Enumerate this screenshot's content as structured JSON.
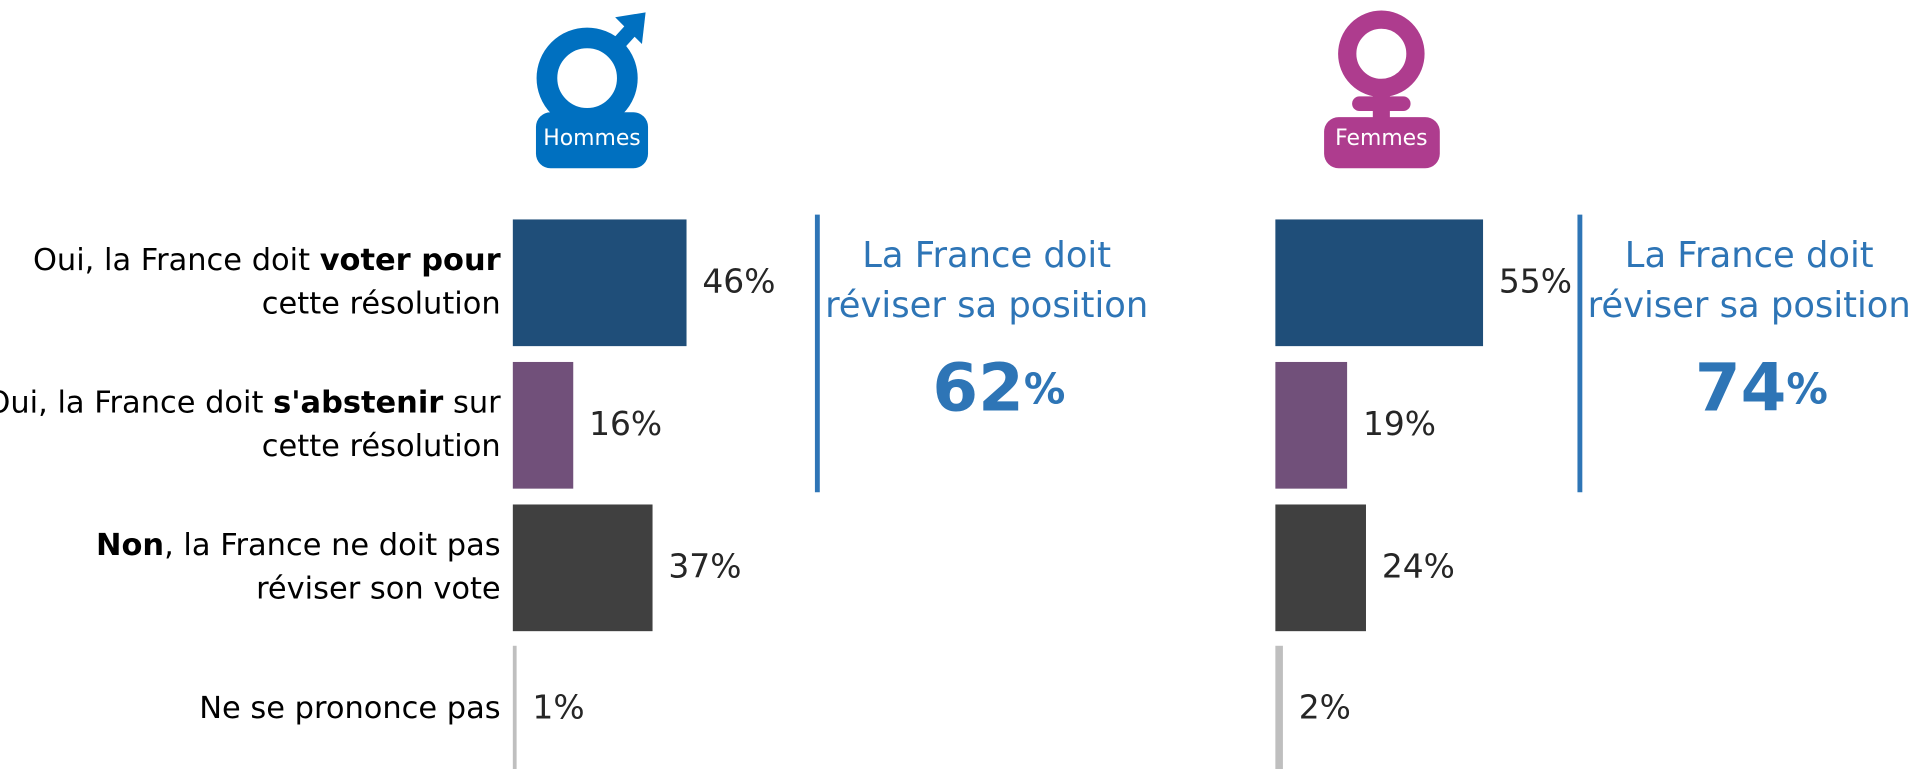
{
  "chart_data": [
    {
      "type": "bar",
      "orientation": "horizontal",
      "title": "Hommes",
      "icon": "male",
      "icon_color": "#0070c0",
      "categories": [
        [
          [
            {
              "text": "Oui, la France doit "
            },
            {
              "text": "voter pour",
              "bold": true
            }
          ],
          [
            {
              "text": "cette résolution"
            }
          ]
        ],
        [
          [
            {
              "text": "Oui, la France doit "
            },
            {
              "text": "s'abstenir",
              "bold": true
            },
            {
              "text": " sur"
            }
          ],
          [
            {
              "text": "cette résolution"
            }
          ]
        ],
        [
          [
            {
              "text": "Non",
              "bold": true
            },
            {
              "text": ", la France ne doit pas"
            }
          ],
          [
            {
              "text": "réviser son vote"
            }
          ]
        ],
        [
          [
            {
              "text": "Ne se prononce pas"
            }
          ]
        ]
      ],
      "values": [
        46,
        16,
        37,
        1
      ],
      "value_labels": [
        "46%",
        "16%",
        "37%",
        "1%"
      ],
      "colors": [
        "#1f4e79",
        "#71507a",
        "#404040",
        "#bfbfbf"
      ],
      "xlim": [
        0,
        100
      ],
      "summary_lines": [
        "La France doit",
        "réviser sa position"
      ],
      "summary_value": 62,
      "summary_unit": "%",
      "summary_color": "#2e75b6"
    },
    {
      "type": "bar",
      "orientation": "horizontal",
      "title": "Femmes",
      "icon": "female",
      "icon_color": "#ae3c8e",
      "values": [
        55,
        19,
        24,
        2
      ],
      "value_labels": [
        "55%",
        "19%",
        "24%",
        "2%"
      ],
      "colors": [
        "#1f4e79",
        "#71507a",
        "#404040",
        "#bfbfbf"
      ],
      "xlim": [
        0,
        100
      ],
      "summary_lines": [
        "La France doit",
        "réviser sa position"
      ],
      "summary_value": 74,
      "summary_unit": "%",
      "summary_color": "#2e75b6"
    }
  ]
}
